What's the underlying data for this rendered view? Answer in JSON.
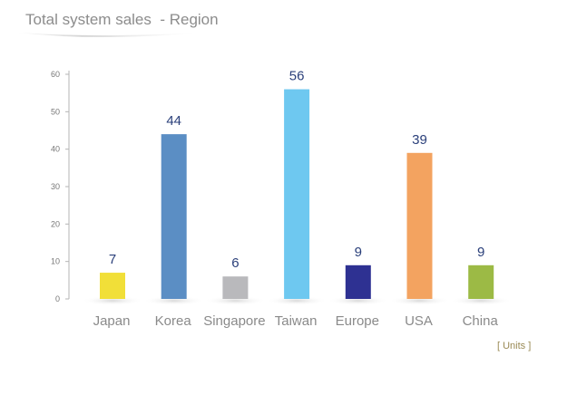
{
  "title": "Total system sales  - Region",
  "units_label": "[ Units ]",
  "chart_data": {
    "type": "bar",
    "title": "Total system sales  - Region",
    "categories": [
      "Japan",
      "Korea",
      "Singapore",
      "Taiwan",
      "Europe",
      "USA",
      "China"
    ],
    "values": [
      7,
      44,
      6,
      56,
      9,
      39,
      9
    ],
    "value_labels": [
      "7",
      "44",
      "6",
      "56",
      "9",
      "39",
      "9"
    ],
    "colors": [
      "#f1df38",
      "#5b8ec4",
      "#b9b9bc",
      "#6ec8f0",
      "#2e3192",
      "#f3a360",
      "#9cba45"
    ],
    "ylim": [
      0,
      60
    ],
    "yticks": [
      0,
      10,
      20,
      30,
      40,
      50,
      60
    ],
    "ytick_labels": [
      "0",
      "10",
      "20",
      "30",
      "40",
      "50",
      "60"
    ],
    "grid": false,
    "legend": "none",
    "xlabel": "",
    "ylabel": ""
  }
}
